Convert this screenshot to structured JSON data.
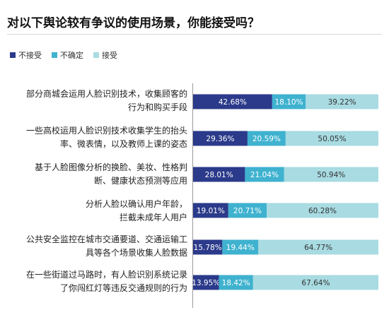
{
  "title": "对以下舆论较有争议的使用场景，你能接受吗？",
  "colors": {
    "not_accept": "#2b3a8a",
    "unsure": "#3fb2cf",
    "accept": "#a8dbe2"
  },
  "chart_data": {
    "type": "bar",
    "orientation": "horizontal",
    "stacked": true,
    "title": "对以下舆论较有争议的使用场景，你能接受吗？",
    "legend_position": "top-left",
    "xlim": [
      0,
      100
    ],
    "categories": [
      [
        "部分商城会运用人脸识别技术，收集顾客的",
        "行为和购买手段"
      ],
      [
        "一些高校运用人脸识别技术收集学生的抬头",
        "率、微表情，以及教师上课的姿态"
      ],
      [
        "基于人脸图像分析的换脸、美妆、性格判",
        "断、健康状态预测等应用"
      ],
      [
        "分析人脸以确认用户年龄，",
        "拦截未成年人用户"
      ],
      [
        "公共安全监控在城市交通要道、交通运输工",
        "具等各个场景收集人脸数据"
      ],
      [
        "在一些街道过马路时，有人脸识别系统记录",
        "了你闯红灯等违反交通规则的行为"
      ]
    ],
    "series": [
      {
        "name": "不接受",
        "color": "#2b3a8a",
        "text_color": "#ffffff",
        "values": [
          42.68,
          29.36,
          28.01,
          19.01,
          15.78,
          13.95
        ],
        "labels": [
          "42.68%",
          "29.36%",
          "28.01%",
          "19.01%",
          "15.78%",
          "13.95%"
        ]
      },
      {
        "name": "不确定",
        "color": "#3fb2cf",
        "text_color": "#ffffff",
        "values": [
          18.1,
          20.59,
          21.04,
          20.71,
          19.44,
          18.42
        ],
        "labels": [
          "18.10%",
          "20.59%",
          "21.04%",
          "20.71%",
          "19.44%",
          "18.42%"
        ]
      },
      {
        "name": "接受",
        "color": "#a8dbe2",
        "text_color": "#333333",
        "values": [
          39.22,
          50.05,
          50.94,
          60.28,
          64.77,
          67.64
        ],
        "labels": [
          "39.22%",
          "50.05%",
          "50.94%",
          "60.28%",
          "64.77%",
          "67.64%"
        ]
      }
    ]
  }
}
